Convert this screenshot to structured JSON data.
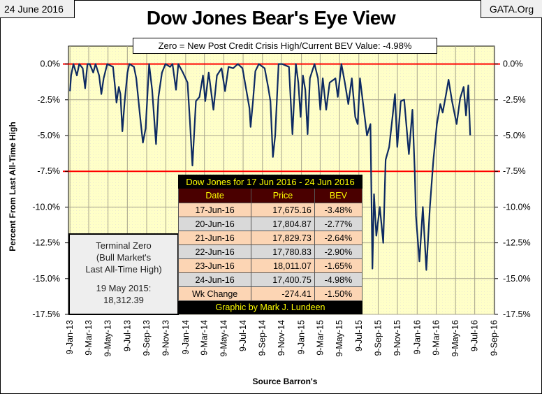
{
  "header": {
    "date": "24 June 2016",
    "site": "GATA.Org",
    "title": "Dow Jones Bear's Eye View",
    "subtitle": "Zero = New Post Credit Crisis High/Current BEV Value:  -4.98%"
  },
  "terminal_zero": {
    "line1": "Terminal Zero",
    "line2": "(Bull Market's",
    "line3": "Last All-Time High)",
    "line4": "19 May 2015:",
    "line5": "18,312.39"
  },
  "table": {
    "title": "Dow Jones for 17 Jun 2016 - 24 Jun 2016",
    "headers": [
      "Date",
      "Price",
      "BEV"
    ],
    "rows": [
      [
        "17-Jun-16",
        "17,675.16",
        "-3.48%"
      ],
      [
        "20-Jun-16",
        "17,804.87",
        "-2.77%"
      ],
      [
        "21-Jun-16",
        "17,829.73",
        "-2.64%"
      ],
      [
        "22-Jun-16",
        "17,780.83",
        "-2.90%"
      ],
      [
        "23-Jun-16",
        "18,011.07",
        "-1.65%"
      ],
      [
        "24-Jun-16",
        "17,400.75",
        "-4.98%"
      ],
      [
        "Wk Change",
        "-274.41",
        "-1.50%"
      ]
    ],
    "footer": "Graphic by Mark J. Lundeen"
  },
  "colors": {
    "plot_bg": "#ffffc8",
    "line": "#0d2a62",
    "ref_line": "#ff0000",
    "grid": "#a8a48c"
  },
  "chart_data": {
    "type": "line",
    "title": "Dow Jones Bear's Eye View",
    "xlabel": "Source Barron's",
    "ylabel": "Percent From Last All-Time High",
    "x_units": "decimal year",
    "xlim": [
      2013.009,
      2016.69
    ],
    "ylim": [
      -17.5,
      1.25
    ],
    "yticks": [
      0,
      -2.5,
      -5,
      -7.5,
      -10,
      -12.5,
      -15,
      -17.5
    ],
    "ytick_labels": [
      "0.0%",
      "-2.5%",
      "-5.0%",
      "-7.5%",
      "-10.0%",
      "-12.5%",
      "-15.0%",
      "-17.5%"
    ],
    "xticks": [
      2013.022,
      2013.184,
      2013.351,
      2013.518,
      2013.685,
      2013.851,
      2014.022,
      2014.184,
      2014.351,
      2014.518,
      2014.685,
      2014.851,
      2015.022,
      2015.184,
      2015.351,
      2015.518,
      2015.685,
      2015.851,
      2016.022,
      2016.186,
      2016.353,
      2016.519,
      2016.686
    ],
    "xtick_labels": [
      "9-Jan-13",
      "9-Mar-13",
      "9-May-13",
      "9-Jul-13",
      "9-Sep-13",
      "9-Nov-13",
      "9-Jan-14",
      "9-Mar-14",
      "9-May-14",
      "9-Jul-14",
      "9-Sep-14",
      "9-Nov-14",
      "9-Jan-15",
      "9-Mar-15",
      "9-May-15",
      "9-Jul-15",
      "9-Sep-15",
      "9-Nov-15",
      "9-Jan-16",
      "9-Mar-16",
      "9-May-16",
      "9-Jul-16",
      "9-Sep-16"
    ],
    "reference_lines": [
      0,
      -7.5
    ],
    "grid": true,
    "series": [
      {
        "name": "Dow Jones BEV",
        "x": [
          2013.022,
          2013.032,
          2013.052,
          2013.082,
          2013.102,
          2013.132,
          2013.153,
          2013.173,
          2013.193,
          2013.223,
          2013.243,
          2013.274,
          2013.293,
          2013.313,
          2013.344,
          2013.394,
          2013.414,
          2013.424,
          2013.444,
          2013.458,
          2013.475,
          2013.495,
          2013.519,
          2013.535,
          2013.575,
          2013.595,
          2013.626,
          2013.652,
          2013.676,
          2013.706,
          2013.732,
          2013.766,
          2013.787,
          2013.817,
          2013.847,
          2013.887,
          2013.908,
          2013.938,
          2013.958,
          2013.998,
          2014.038,
          2014.058,
          2014.08,
          2014.11,
          2014.141,
          2014.171,
          2014.191,
          2014.221,
          2014.262,
          2014.292,
          2014.332,
          2014.362,
          2014.392,
          2014.432,
          2014.473,
          2014.513,
          2014.573,
          2014.583,
          2014.603,
          2014.624,
          2014.654,
          2014.704,
          2014.734,
          2014.754,
          2014.775,
          2014.795,
          2014.815,
          2014.825,
          2014.855,
          2014.914,
          2014.944,
          2014.974,
          2014.995,
          2015.015,
          2015.035,
          2015.055,
          2015.075,
          2015.095,
          2015.135,
          2015.165,
          2015.185,
          2015.206,
          2015.236,
          2015.266,
          2015.316,
          2015.336,
          2015.367,
          2015.397,
          2015.427,
          2015.457,
          2015.487,
          2015.508,
          2015.528,
          2015.558,
          2015.588,
          2015.618,
          2015.635,
          2015.649,
          2015.669,
          2015.699,
          2015.729,
          2015.749,
          2015.78,
          2015.81,
          2015.83,
          2015.85,
          2015.88,
          2015.91,
          2015.95,
          2015.981,
          2016.001,
          2016.011,
          2016.041,
          2016.071,
          2016.101,
          2016.132,
          2016.162,
          2016.192,
          2016.222,
          2016.242,
          2016.272,
          2016.293,
          2016.323,
          2016.343,
          2016.363,
          2016.393,
          2016.423,
          2016.444,
          2016.464,
          2016.48
        ],
        "y": [
          -1.9,
          -0.8,
          0,
          -0.8,
          0,
          -0.3,
          -1.7,
          0,
          0,
          -0.6,
          0,
          -0.8,
          -2.1,
          -1.0,
          0,
          -0.2,
          -1.8,
          -2.7,
          -1.6,
          -2.1,
          -4.7,
          -2.6,
          -0.6,
          0,
          -0.2,
          -1.0,
          -3.5,
          -5.5,
          -4.5,
          0,
          -1.8,
          -5.6,
          -2.3,
          -0.6,
          0,
          -0.2,
          0,
          -1.8,
          0,
          -0.6,
          -1.3,
          -3.9,
          -7.1,
          -2.6,
          -2.3,
          -0.8,
          -2.6,
          -0.6,
          -3.2,
          -0.8,
          -0.3,
          -1.9,
          -0.2,
          -0.3,
          0,
          -0.3,
          -3.1,
          -4.4,
          -2.6,
          -0.5,
          0,
          -0.3,
          -1.6,
          -2.6,
          -6.5,
          -5.0,
          -1.6,
          0,
          0,
          -0.2,
          -4.9,
          0,
          -1.3,
          -3.7,
          -0.8,
          -1.8,
          -4.9,
          -1.0,
          0,
          -1.0,
          -3.2,
          -1.0,
          -3.2,
          -1.3,
          -1.0,
          -2.3,
          0,
          -1.3,
          -2.8,
          -1.0,
          -3.7,
          -4.2,
          -1.0,
          -3.0,
          -5.0,
          -4.2,
          -14.3,
          -9.1,
          -12.0,
          -10.0,
          -12.5,
          -6.7,
          -5.8,
          -3.6,
          -2.1,
          -5.8,
          -2.6,
          -2.5,
          -6.3,
          -3.2,
          -7.5,
          -10.6,
          -13.8,
          -10.0,
          -14.4,
          -10.0,
          -6.7,
          -4.2,
          -2.8,
          -3.4,
          -2.1,
          -1.1,
          -2.6,
          -3.4,
          -4.2,
          -2.4,
          -1.6,
          -3.6,
          -1.5,
          -4.98
        ]
      }
    ]
  }
}
